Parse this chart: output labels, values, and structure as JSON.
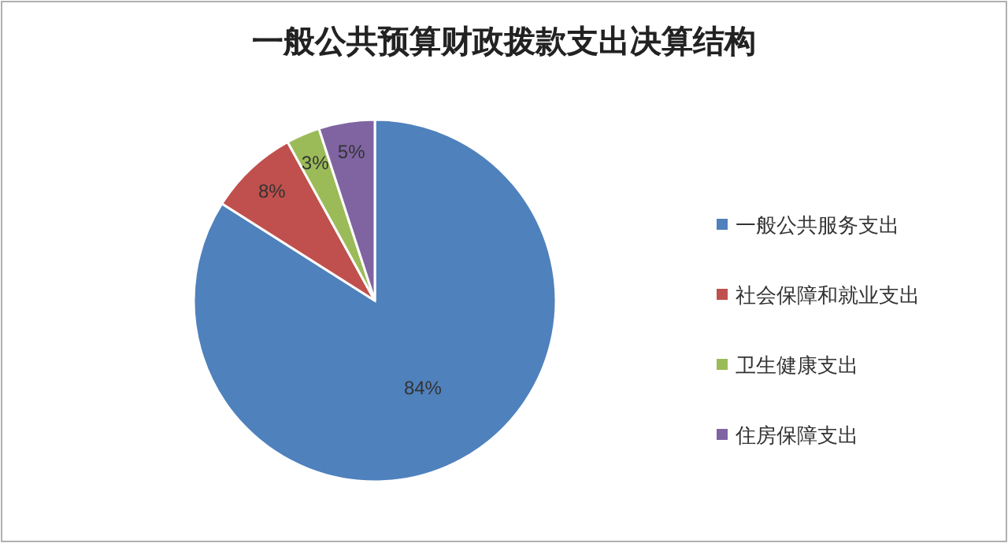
{
  "chart_data": {
    "type": "pie",
    "title": "一般公共预算财政拨款支出决算结构",
    "categories": [
      "一般公共服务支出",
      "社会保障和就业支出",
      "卫生健康支出",
      "住房保障支出"
    ],
    "values": [
      84,
      8,
      3,
      5
    ],
    "colors": [
      "#4f81bd",
      "#c0504d",
      "#9bbb59",
      "#8064a2"
    ],
    "value_labels": [
      "84%",
      "8%",
      "3%",
      "5%"
    ],
    "legend": "right"
  }
}
